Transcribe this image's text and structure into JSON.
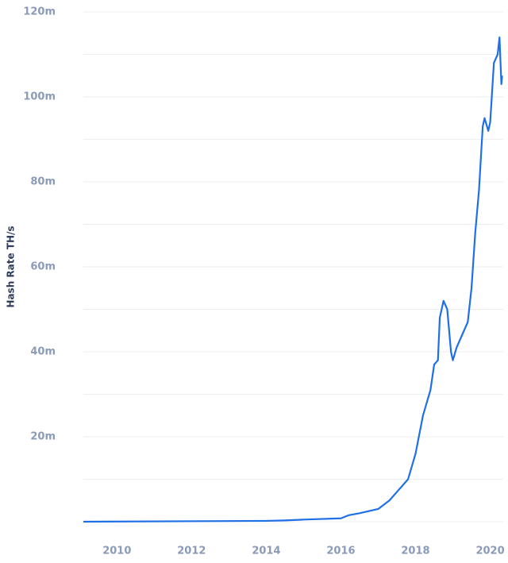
{
  "chart_data": {
    "type": "line",
    "y_label": "Hash Rate TH/s",
    "x": [
      2009.1,
      2014.0,
      2014.5,
      2015.0,
      2016.0,
      2016.2,
      2016.5,
      2017.0,
      2017.3,
      2017.5,
      2017.8,
      2018.0,
      2018.2,
      2018.4,
      2018.5,
      2018.6,
      2018.65,
      2018.75,
      2018.85,
      2018.95,
      2019.0,
      2019.1,
      2019.3,
      2019.4,
      2019.5,
      2019.6,
      2019.7,
      2019.8,
      2019.85,
      2019.95,
      2020.0,
      2020.1,
      2020.2,
      2020.25,
      2020.3,
      2020.32
    ],
    "values": [
      0,
      200000,
      300000,
      500000,
      800000,
      1500000,
      2000000,
      3000000,
      5000000,
      7000000,
      10000000,
      16000000,
      25000000,
      31000000,
      37000000,
      38000000,
      48000000,
      52000000,
      50000000,
      40000000,
      38000000,
      41000000,
      45000000,
      47000000,
      55000000,
      68000000,
      78000000,
      93000000,
      95000000,
      92000000,
      94000000,
      108000000,
      110000000,
      114000000,
      103000000,
      105000000
    ],
    "color": "#1f6fe6",
    "xlim": [
      2009.1,
      2020.35
    ],
    "xticks": [
      2010,
      2012,
      2014,
      2016,
      2018,
      2020
    ],
    "ylim": [
      0,
      120000000
    ],
    "yticks": [
      {
        "value": 20000000,
        "label": "20m"
      },
      {
        "value": 40000000,
        "label": "40m"
      },
      {
        "value": 60000000,
        "label": "60m"
      },
      {
        "value": 80000000,
        "label": "80m"
      },
      {
        "value": 100000000,
        "label": "100m"
      },
      {
        "value": 120000000,
        "label": "120m"
      }
    ],
    "ygrid": [
      0,
      10000000,
      20000000,
      30000000,
      40000000,
      50000000,
      60000000,
      70000000,
      80000000,
      90000000,
      100000000,
      110000000,
      120000000
    ]
  }
}
